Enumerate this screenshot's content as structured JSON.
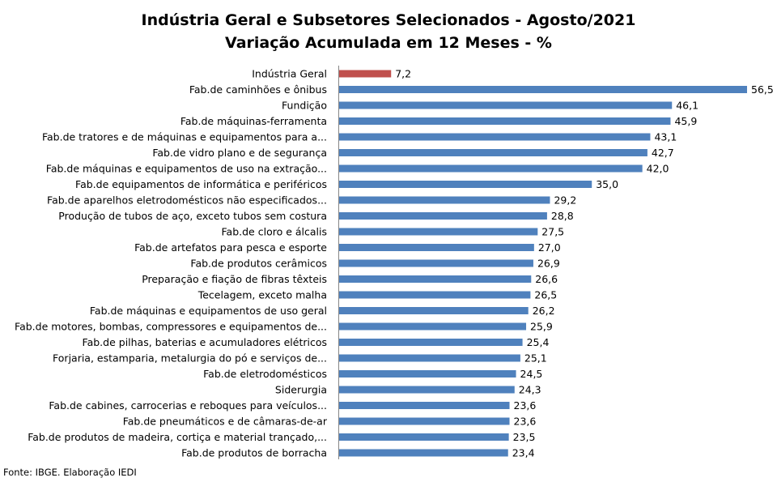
{
  "chart_data": {
    "type": "bar",
    "orientation": "horizontal",
    "title": "Indústria Geral e Subsetores Selecionados - Agosto/2021",
    "subtitle": "Variação Acumulada em 12 Meses - %",
    "xlabel": "",
    "ylabel": "",
    "xlim": [
      0,
      56.5
    ],
    "grid": false,
    "colors": {
      "highlight": "#C0504D",
      "default": "#4F81BD"
    },
    "categories": [
      "Indústria Geral",
      "Fab.de caminhões e ônibus",
      "Fundição",
      "Fab.de máquinas-ferramenta",
      "Fab.de tratores e de máquinas e equipamentos para a...",
      "Fab.de vidro plano e de segurança",
      "Fab.de máquinas e equipamentos de uso na extração...",
      "Fab.de equipamentos de informática e periféricos",
      "Fab.de aparelhos eletrodomésticos não especificados...",
      "Produção de tubos de aço, exceto tubos sem costura",
      "Fab.de cloro e álcalis",
      "Fab.de artefatos para pesca e esporte",
      "Fab.de produtos cerâmicos",
      "Preparação e fiação de fibras têxteis",
      "Tecelagem, exceto malha",
      "Fab.de máquinas e equipamentos de uso geral",
      "Fab.de motores, bombas, compressores e equipamentos de...",
      "Fab.de pilhas, baterias e acumuladores elétricos",
      "Forjaria, estamparia, metalurgia do pó e serviços de...",
      "Fab.de eletrodomésticos",
      "Siderurgia",
      "Fab.de cabines, carrocerias e reboques para veículos...",
      "Fab.de pneumáticos e de câmaras-de-ar",
      "Fab.de produtos de madeira, cortiça e material trançado,...",
      "Fab.de produtos de borracha"
    ],
    "values": [
      7.2,
      56.5,
      46.1,
      45.9,
      43.1,
      42.7,
      42.0,
      35.0,
      29.2,
      28.8,
      27.5,
      27.0,
      26.9,
      26.6,
      26.5,
      26.2,
      25.9,
      25.4,
      25.1,
      24.5,
      24.3,
      23.6,
      23.6,
      23.5,
      23.4
    ],
    "value_labels": [
      "7,2",
      "56,5",
      "46,1",
      "45,9",
      "43,1",
      "42,7",
      "42,0",
      "35,0",
      "29,2",
      "28,8",
      "27,5",
      "27,0",
      "26,9",
      "26,6",
      "26,5",
      "26,2",
      "25,9",
      "25,4",
      "25,1",
      "24,5",
      "24,3",
      "23,6",
      "23,6",
      "23,5",
      "23,4"
    ],
    "highlight_index": 0
  },
  "source": "Fonte: IBGE. Elaboração IEDI"
}
